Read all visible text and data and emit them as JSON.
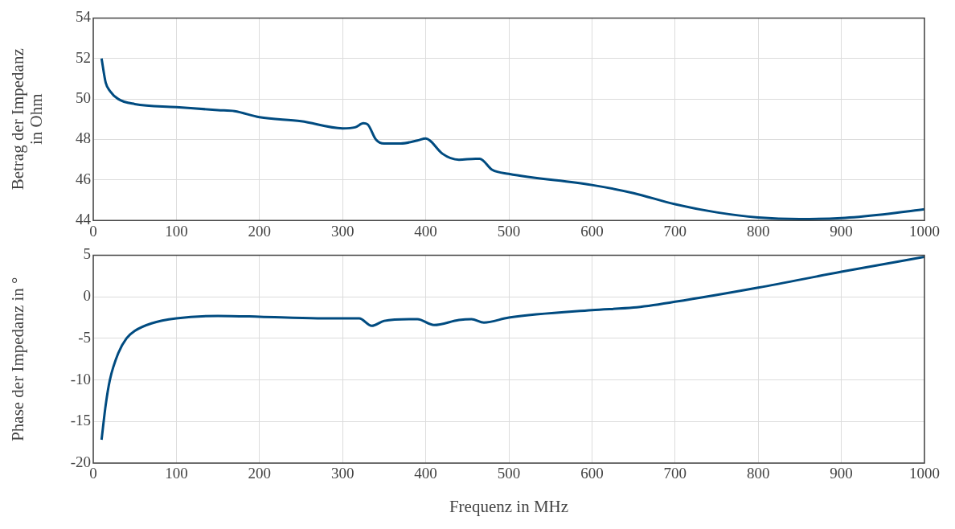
{
  "chart_data": [
    {
      "type": "line",
      "ylabel": "Betrag der Impedanz\nin Ohm",
      "xlim": [
        0,
        1000
      ],
      "xticks": [
        0,
        100,
        200,
        300,
        400,
        500,
        600,
        700,
        800,
        900,
        1000
      ],
      "ylim": [
        44,
        54
      ],
      "yticks": [
        44,
        46,
        48,
        50,
        52,
        54
      ],
      "grid": true,
      "legend": false,
      "line_style": "solid",
      "marker": "none",
      "series": [
        {
          "color": "#004b80",
          "x": [
            10,
            15,
            20,
            30,
            50,
            100,
            150,
            170,
            200,
            250,
            300,
            315,
            325,
            330,
            340,
            350,
            370,
            390,
            400,
            405,
            420,
            440,
            460,
            465,
            480,
            500,
            600,
            650,
            700,
            750,
            800,
            850,
            900,
            950,
            1000
          ],
          "values": [
            52,
            50.8,
            50.4,
            50,
            49.75,
            49.6,
            49.45,
            49.4,
            49.1,
            48.9,
            48.55,
            48.6,
            48.8,
            48.75,
            48,
            47.8,
            47.8,
            47.95,
            48.05,
            47.95,
            47.3,
            47,
            47.05,
            47.05,
            46.5,
            46.3,
            45.75,
            45.35,
            44.8,
            44.4,
            44.15,
            44.07,
            44.12,
            44.3,
            44.55
          ]
        }
      ]
    },
    {
      "type": "line",
      "xlabel": "Frequenz in MHz",
      "ylabel": "Phase der Impedanz in °",
      "xlim": [
        0,
        1000
      ],
      "xticks": [
        0,
        100,
        200,
        300,
        400,
        500,
        600,
        700,
        800,
        900,
        1000
      ],
      "ylim": [
        -20,
        5
      ],
      "yticks": [
        -20,
        -15,
        -10,
        -5,
        0,
        5
      ],
      "grid": true,
      "legend": false,
      "line_style": "solid",
      "marker": "none",
      "series": [
        {
          "color": "#004b80",
          "x": [
            10,
            15,
            20,
            30,
            40,
            50,
            70,
            100,
            150,
            200,
            270,
            300,
            320,
            335,
            350,
            380,
            390,
            410,
            440,
            455,
            470,
            500,
            600,
            650,
            700,
            800,
            900,
            1000
          ],
          "values": [
            -17.2,
            -13,
            -10,
            -6.8,
            -5,
            -4.1,
            -3.2,
            -2.6,
            -2.3,
            -2.4,
            -2.6,
            -2.6,
            -2.6,
            -3.5,
            -2.9,
            -2.7,
            -2.7,
            -3.4,
            -2.8,
            -2.7,
            -3.1,
            -2.5,
            -1.6,
            -1.3,
            -0.6,
            1.1,
            3,
            4.8
          ]
        }
      ]
    }
  ]
}
